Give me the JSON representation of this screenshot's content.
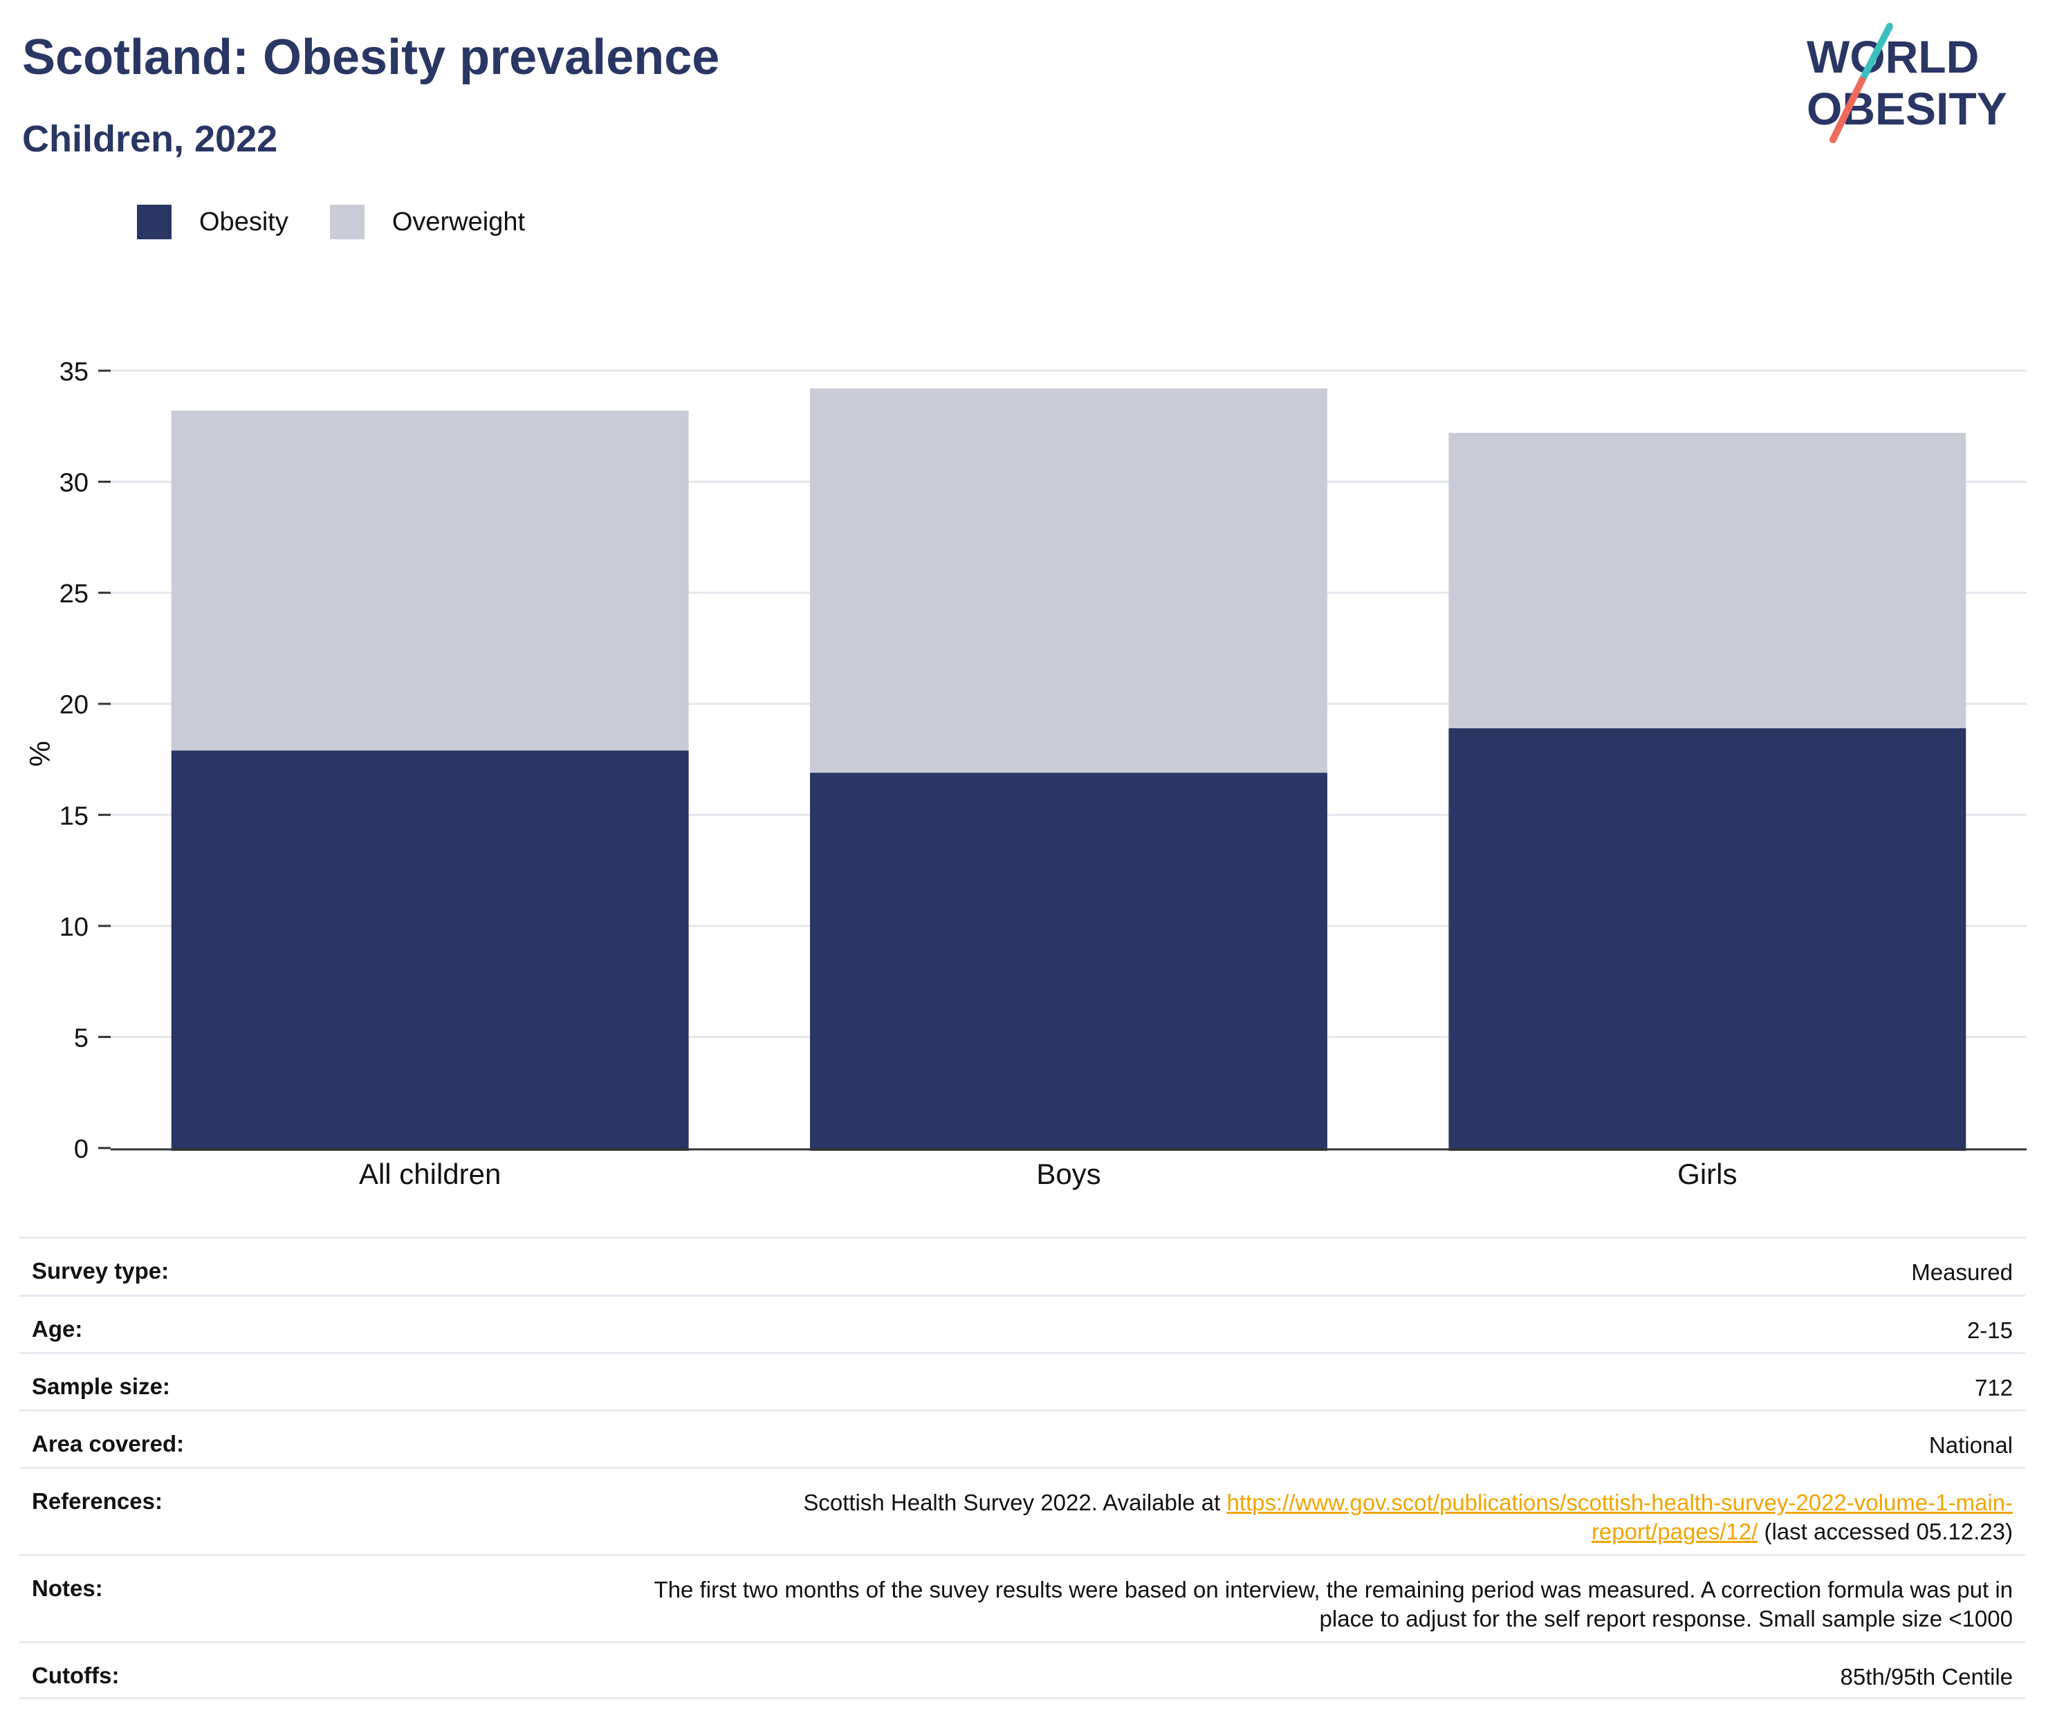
{
  "header": {
    "title": "Scotland: Obesity prevalence",
    "subtitle": "Children, 2022"
  },
  "logo": {
    "line1": "WORLD",
    "line2": "OBESITY"
  },
  "colors": {
    "obesity": "#2a3663",
    "overweight": "#c9cbd7",
    "accent_teal": "#3bbfbf",
    "accent_coral": "#ef6a5a",
    "link": "#f0a500"
  },
  "chart_data": {
    "type": "bar",
    "stacked": true,
    "categories": [
      "All children",
      "Boys",
      "Girls"
    ],
    "series": [
      {
        "name": "Obesity",
        "values": [
          17.9,
          16.9,
          18.9
        ]
      },
      {
        "name": "Overweight",
        "values": [
          15.3,
          17.3,
          13.3
        ]
      }
    ],
    "ylabel": "%",
    "ylim": [
      0,
      35
    ],
    "yticks": [
      0,
      5,
      10,
      15,
      20,
      25,
      30,
      35
    ],
    "grid": true,
    "legend_position": "top-left"
  },
  "info": {
    "survey_type": {
      "label": "Survey type:",
      "value": "Measured"
    },
    "age": {
      "label": "Age:",
      "value": "2-15"
    },
    "sample_size": {
      "label": "Sample size:",
      "value": "712"
    },
    "area": {
      "label": "Area covered:",
      "value": "National"
    },
    "references": {
      "label": "References:",
      "prefix": "Scottish Health Survey 2022. Available at ",
      "link_part1": "https://www.gov.scot/publications/scottish-health-survey-2022-volume-1-main-",
      "link_part2": "report/pages/12/",
      "suffix": " (last accessed 05.12.23)"
    },
    "notes": {
      "label": "Notes:",
      "line1": "The first two months of the suvey results were based on interview, the remaining period was measured. A correction formula was put in",
      "line2": "place to adjust for the self report response. Small sample size <1000"
    },
    "cutoffs": {
      "label": "Cutoffs:",
      "value": "85th/95th Centile"
    }
  }
}
